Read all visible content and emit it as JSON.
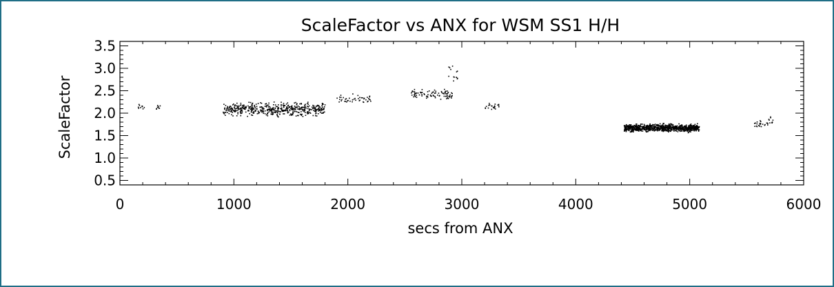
{
  "chart_data": {
    "type": "scatter",
    "title": "ScaleFactor vs ANX for WSM SS1 H/H",
    "xlabel": "secs from ANX",
    "ylabel": "ScaleFactor",
    "xlim": [
      0,
      6000
    ],
    "ylim": [
      0.4,
      3.6
    ],
    "x_ticks": [
      0,
      1000,
      2000,
      3000,
      4000,
      5000,
      6000
    ],
    "x_tick_labels": [
      "0",
      "1000",
      "2000",
      "3000",
      "4000",
      "5000",
      "6000"
    ],
    "y_ticks": [
      0.5,
      1.0,
      1.5,
      2.0,
      2.5,
      3.0,
      3.5
    ],
    "y_tick_labels": [
      "0.5",
      "1.0",
      "1.5",
      "2.0",
      "2.5",
      "3.0",
      "3.5"
    ],
    "grid": false,
    "legend": "none",
    "marker_color": "#000000",
    "clusters": [
      {
        "x_range": [
          150,
          210
        ],
        "y_center": 2.14,
        "y_spread": 0.05,
        "count": 10
      },
      {
        "x_range": [
          300,
          360
        ],
        "y_center": 2.15,
        "y_spread": 0.05,
        "count": 8
      },
      {
        "x_range": [
          900,
          1800
        ],
        "y_center": 2.1,
        "y_spread": 0.1,
        "count": 520
      },
      {
        "x_range": [
          1900,
          2200
        ],
        "y_center": 2.32,
        "y_spread": 0.07,
        "count": 45
      },
      {
        "x_range": [
          2550,
          2920
        ],
        "y_center": 2.42,
        "y_spread": 0.08,
        "count": 90
      },
      {
        "x_range": [
          2880,
          2960
        ],
        "y_center": 2.85,
        "y_spread": 0.16,
        "count": 14
      },
      {
        "x_range": [
          3200,
          3340
        ],
        "y_center": 2.15,
        "y_spread": 0.06,
        "count": 22
      },
      {
        "x_range": [
          4420,
          5080
        ],
        "y_center": 1.68,
        "y_spread": 0.06,
        "count": 900
      },
      {
        "x_range": [
          5560,
          5720
        ],
        "y_center": 1.77,
        "y_spread": 0.05,
        "count": 26
      },
      {
        "x_range": [
          5690,
          5740
        ],
        "y_center": 1.9,
        "y_spread": 0.05,
        "count": 6
      }
    ]
  }
}
